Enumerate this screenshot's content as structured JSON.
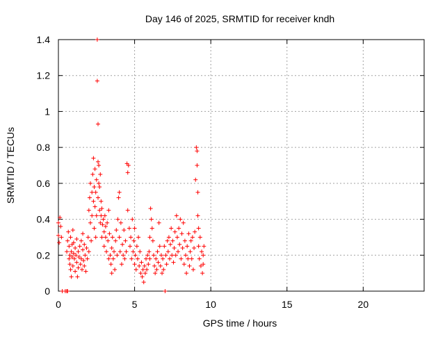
{
  "chart_data": {
    "type": "scatter",
    "title": "Day 146 of 2025, SRMTID for receiver kndh",
    "xlabel": "GPS time / hours",
    "ylabel": "SRMTID / TECUs",
    "xlim": [
      0,
      24
    ],
    "ylim": [
      0,
      1.4
    ],
    "xticks": [
      0,
      5,
      10,
      15,
      20
    ],
    "xtick_labels": [
      "0",
      "5",
      "10",
      "15",
      "20"
    ],
    "yticks": [
      0,
      0.2,
      0.4,
      0.6,
      0.8,
      1.0,
      1.2,
      1.4
    ],
    "ytick_labels": [
      "0",
      "0.2",
      "0.4",
      "0.6",
      "0.8",
      "1",
      "1.2",
      "1.4"
    ],
    "grid": true,
    "legend": "none",
    "marker": "plus",
    "color": "#ff0000",
    "series": [
      {
        "points": [
          [
            0.0,
            0.38
          ],
          [
            0.0,
            0.31
          ],
          [
            0.05,
            0.27
          ],
          [
            0.1,
            0.41
          ],
          [
            0.15,
            0.36
          ],
          [
            0.2,
            0.3
          ],
          [
            0.25,
            0.0
          ],
          [
            0.45,
            0.0
          ],
          [
            0.55,
            0.0
          ],
          [
            0.6,
            0.0
          ],
          [
            0.55,
            0.22
          ],
          [
            0.6,
            0.28
          ],
          [
            0.65,
            0.33
          ],
          [
            0.7,
            0.18
          ],
          [
            0.7,
            0.25
          ],
          [
            0.75,
            0.15
          ],
          [
            0.75,
            0.2
          ],
          [
            0.8,
            0.12
          ],
          [
            0.8,
            0.3
          ],
          [
            0.85,
            0.22
          ],
          [
            0.85,
            0.08
          ],
          [
            0.9,
            0.26
          ],
          [
            0.9,
            0.19
          ],
          [
            0.95,
            0.34
          ],
          [
            0.95,
            0.14
          ],
          [
            1.0,
            0.21
          ],
          [
            1.0,
            0.27
          ],
          [
            1.05,
            0.18
          ],
          [
            1.1,
            0.24
          ],
          [
            1.1,
            0.11
          ],
          [
            1.15,
            0.2
          ],
          [
            1.2,
            0.16
          ],
          [
            1.2,
            0.29
          ],
          [
            1.25,
            0.08
          ],
          [
            1.3,
            0.22
          ],
          [
            1.3,
            0.13
          ],
          [
            1.35,
            0.19
          ],
          [
            1.4,
            0.25
          ],
          [
            1.45,
            0.15
          ],
          [
            1.5,
            0.28
          ],
          [
            1.5,
            0.18
          ],
          [
            1.55,
            0.12
          ],
          [
            1.6,
            0.23
          ],
          [
            1.6,
            0.32
          ],
          [
            1.65,
            0.17
          ],
          [
            1.7,
            0.14
          ],
          [
            1.7,
            0.26
          ],
          [
            1.75,
            0.2
          ],
          [
            1.8,
            0.11
          ],
          [
            1.85,
            0.24
          ],
          [
            1.9,
            0.18
          ],
          [
            1.95,
            0.3
          ],
          [
            2.0,
            0.22
          ],
          [
            2.0,
            0.45
          ],
          [
            2.05,
            0.52
          ],
          [
            2.1,
            0.38
          ],
          [
            2.1,
            0.6
          ],
          [
            2.15,
            0.28
          ],
          [
            2.2,
            0.55
          ],
          [
            2.2,
            0.42
          ],
          [
            2.25,
            0.65
          ],
          [
            2.3,
            0.5
          ],
          [
            2.3,
            0.74
          ],
          [
            2.35,
            0.35
          ],
          [
            2.35,
            0.58
          ],
          [
            2.4,
            0.47
          ],
          [
            2.4,
            0.68
          ],
          [
            2.45,
            0.3
          ],
          [
            2.45,
            0.55
          ],
          [
            2.5,
            0.62
          ],
          [
            2.5,
            0.42
          ],
          [
            2.55,
            1.4
          ],
          [
            2.55,
            1.17
          ],
          [
            2.6,
            0.93
          ],
          [
            2.6,
            0.72
          ],
          [
            2.6,
            0.52
          ],
          [
            2.65,
            0.6
          ],
          [
            2.65,
            0.7
          ],
          [
            2.7,
            0.45
          ],
          [
            2.7,
            0.58
          ],
          [
            2.75,
            0.65
          ],
          [
            2.75,
            0.38
          ],
          [
            2.8,
            0.5
          ],
          [
            2.8,
            0.42
          ],
          [
            2.85,
            0.3
          ],
          [
            2.85,
            0.46
          ],
          [
            2.9,
            0.37
          ],
          [
            2.95,
            0.4
          ],
          [
            3.0,
            0.33
          ],
          [
            3.0,
            0.25
          ],
          [
            3.05,
            0.42
          ],
          [
            3.1,
            0.3
          ],
          [
            3.1,
            0.36
          ],
          [
            3.15,
            0.22
          ],
          [
            3.2,
            0.38
          ],
          [
            3.25,
            0.28
          ],
          [
            3.3,
            0.45
          ],
          [
            3.3,
            0.18
          ],
          [
            3.35,
            0.32
          ],
          [
            3.4,
            0.2
          ],
          [
            3.45,
            0.15
          ],
          [
            3.5,
            0.24
          ],
          [
            3.5,
            0.1
          ],
          [
            3.55,
            0.3
          ],
          [
            3.6,
            0.18
          ],
          [
            3.65,
            0.22
          ],
          [
            3.7,
            0.12
          ],
          [
            3.75,
            0.28
          ],
          [
            3.8,
            0.34
          ],
          [
            3.85,
            0.2
          ],
          [
            3.9,
            0.4
          ],
          [
            3.95,
            0.52
          ],
          [
            4.0,
            0.55
          ],
          [
            4.0,
            0.3
          ],
          [
            4.05,
            0.22
          ],
          [
            4.1,
            0.38
          ],
          [
            4.15,
            0.15
          ],
          [
            4.2,
            0.26
          ],
          [
            4.25,
            0.2
          ],
          [
            4.3,
            0.34
          ],
          [
            4.35,
            0.18
          ],
          [
            4.4,
            0.28
          ],
          [
            4.45,
            0.22
          ],
          [
            4.5,
            0.71
          ],
          [
            4.55,
            0.66
          ],
          [
            4.55,
            0.45
          ],
          [
            4.6,
            0.7
          ],
          [
            4.65,
            0.35
          ],
          [
            4.7,
            0.25
          ],
          [
            4.75,
            0.3
          ],
          [
            4.8,
            0.18
          ],
          [
            4.85,
            0.4
          ],
          [
            4.9,
            0.22
          ],
          [
            4.95,
            0.28
          ],
          [
            5.0,
            0.15
          ],
          [
            5.0,
            0.35
          ],
          [
            5.05,
            0.2
          ],
          [
            5.1,
            0.12
          ],
          [
            5.15,
            0.25
          ],
          [
            5.2,
            0.18
          ],
          [
            5.25,
            0.3
          ],
          [
            5.3,
            0.14
          ],
          [
            5.35,
            0.22
          ],
          [
            5.4,
            0.1
          ],
          [
            5.45,
            0.16
          ],
          [
            5.5,
            0.08
          ],
          [
            5.55,
            0.12
          ],
          [
            5.6,
            0.05
          ],
          [
            5.65,
            0.14
          ],
          [
            5.7,
            0.1
          ],
          [
            5.75,
            0.18
          ],
          [
            5.8,
            0.12
          ],
          [
            5.85,
            0.2
          ],
          [
            5.9,
            0.15
          ],
          [
            5.95,
            0.22
          ],
          [
            6.0,
            0.18
          ],
          [
            6.0,
            0.3
          ],
          [
            6.05,
            0.46
          ],
          [
            6.1,
            0.4
          ],
          [
            6.15,
            0.35
          ],
          [
            6.2,
            0.28
          ],
          [
            6.25,
            0.2
          ],
          [
            6.3,
            0.14
          ],
          [
            6.35,
            0.1
          ],
          [
            6.4,
            0.18
          ],
          [
            6.45,
            0.12
          ],
          [
            6.5,
            0.22
          ],
          [
            6.55,
            0.16
          ],
          [
            6.6,
            0.38
          ],
          [
            6.65,
            0.25
          ],
          [
            6.7,
            0.14
          ],
          [
            6.75,
            0.2
          ],
          [
            6.8,
            0.1
          ],
          [
            6.85,
            0.18
          ],
          [
            6.9,
            0.12
          ],
          [
            6.95,
            0.25
          ],
          [
            7.0,
            0.0
          ],
          [
            7.05,
            0.2
          ],
          [
            7.1,
            0.15
          ],
          [
            7.15,
            0.28
          ],
          [
            7.2,
            0.22
          ],
          [
            7.25,
            0.3
          ],
          [
            7.3,
            0.18
          ],
          [
            7.35,
            0.26
          ],
          [
            7.4,
            0.35
          ],
          [
            7.45,
            0.2
          ],
          [
            7.5,
            0.28
          ],
          [
            7.55,
            0.16
          ],
          [
            7.6,
            0.24
          ],
          [
            7.65,
            0.33
          ],
          [
            7.7,
            0.2
          ],
          [
            7.75,
            0.42
          ],
          [
            7.8,
            0.3
          ],
          [
            7.85,
            0.22
          ],
          [
            7.9,
            0.35
          ],
          [
            7.95,
            0.26
          ],
          [
            8.0,
            0.4
          ],
          [
            8.05,
            0.18
          ],
          [
            8.1,
            0.32
          ],
          [
            8.15,
            0.24
          ],
          [
            8.2,
            0.38
          ],
          [
            8.25,
            0.15
          ],
          [
            8.3,
            0.28
          ],
          [
            8.35,
            0.2
          ],
          [
            8.4,
            0.1
          ],
          [
            8.45,
            0.25
          ],
          [
            8.5,
            0.18
          ],
          [
            8.55,
            0.32
          ],
          [
            8.6,
            0.14
          ],
          [
            8.65,
            0.22
          ],
          [
            8.7,
            0.28
          ],
          [
            8.75,
            0.18
          ],
          [
            8.8,
            0.3
          ],
          [
            8.85,
            0.12
          ],
          [
            8.9,
            0.24
          ],
          [
            8.95,
            0.33
          ],
          [
            9.0,
            0.62
          ],
          [
            9.05,
            0.8
          ],
          [
            9.1,
            0.78
          ],
          [
            9.1,
            0.7
          ],
          [
            9.15,
            0.55
          ],
          [
            9.15,
            0.42
          ],
          [
            9.2,
            0.35
          ],
          [
            9.2,
            0.25
          ],
          [
            9.25,
            0.18
          ],
          [
            9.3,
            0.3
          ],
          [
            9.35,
            0.14
          ],
          [
            9.4,
            0.22
          ],
          [
            9.45,
            0.1
          ],
          [
            9.5,
            0.2
          ],
          [
            9.5,
            0.15
          ],
          [
            9.55,
            0.25
          ]
        ]
      }
    ]
  }
}
